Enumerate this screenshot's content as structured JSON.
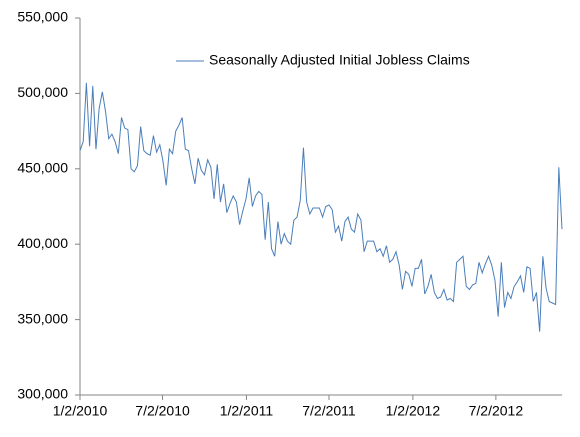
{
  "chart_data": {
    "type": "line",
    "x": [
      "1/2/2010",
      "1/9/2010",
      "1/16/2010",
      "1/23/2010",
      "1/30/2010",
      "2/6/2010",
      "2/13/2010",
      "2/20/2010",
      "2/27/2010",
      "3/6/2010",
      "3/13/2010",
      "3/20/2010",
      "3/27/2010",
      "4/3/2010",
      "4/10/2010",
      "4/17/2010",
      "4/24/2010",
      "5/1/2010",
      "5/8/2010",
      "5/15/2010",
      "5/22/2010",
      "5/29/2010",
      "6/5/2010",
      "6/12/2010",
      "6/19/2010",
      "6/26/2010",
      "7/3/2010",
      "7/10/2010",
      "7/17/2010",
      "7/24/2010",
      "7/31/2010",
      "8/7/2010",
      "8/14/2010",
      "8/21/2010",
      "8/28/2010",
      "9/4/2010",
      "9/11/2010",
      "9/18/2010",
      "9/25/2010",
      "10/2/2010",
      "10/9/2010",
      "10/16/2010",
      "10/23/2010",
      "10/30/2010",
      "11/6/2010",
      "11/13/2010",
      "11/20/2010",
      "11/27/2010",
      "12/4/2010",
      "12/11/2010",
      "12/18/2010",
      "12/25/2010",
      "1/1/2011",
      "1/8/2011",
      "1/15/2011",
      "1/22/2011",
      "1/29/2011",
      "2/5/2011",
      "2/12/2011",
      "2/19/2011",
      "2/26/2011",
      "3/5/2011",
      "3/12/2011",
      "3/19/2011",
      "3/26/2011",
      "4/2/2011",
      "4/9/2011",
      "4/16/2011",
      "4/23/2011",
      "4/30/2011",
      "5/7/2011",
      "5/14/2011",
      "5/21/2011",
      "5/28/2011",
      "6/4/2011",
      "6/11/2011",
      "6/18/2011",
      "6/25/2011",
      "7/2/2011",
      "7/9/2011",
      "7/16/2011",
      "7/23/2011",
      "7/30/2011",
      "8/6/2011",
      "8/13/2011",
      "8/20/2011",
      "8/27/2011",
      "9/3/2011",
      "9/10/2011",
      "9/17/2011",
      "9/24/2011",
      "10/1/2011",
      "10/8/2011",
      "10/15/2011",
      "10/22/2011",
      "10/29/2011",
      "11/5/2011",
      "11/12/2011",
      "11/19/2011",
      "11/26/2011",
      "12/3/2011",
      "12/10/2011",
      "12/17/2011",
      "12/24/2011",
      "12/31/2011",
      "1/7/2012",
      "1/14/2012",
      "1/21/2012",
      "1/28/2012",
      "2/4/2012",
      "2/11/2012",
      "2/18/2012",
      "2/25/2012",
      "3/3/2012",
      "3/10/2012",
      "3/17/2012",
      "3/24/2012",
      "3/31/2012",
      "4/7/2012",
      "4/14/2012",
      "4/21/2012",
      "4/28/2012",
      "5/5/2012",
      "5/12/2012",
      "5/19/2012",
      "5/26/2012",
      "6/2/2012",
      "6/9/2012",
      "6/16/2012",
      "6/23/2012",
      "6/30/2012",
      "7/7/2012",
      "7/14/2012",
      "7/21/2012",
      "7/28/2012",
      "8/4/2012",
      "8/11/2012",
      "8/18/2012",
      "8/25/2012",
      "9/1/2012",
      "9/8/2012",
      "9/15/2012",
      "9/22/2012",
      "9/29/2012",
      "10/6/2012",
      "10/13/2012",
      "10/20/2012",
      "10/27/2012",
      "11/3/2012",
      "11/10/2012",
      "11/17/2012",
      "11/24/2012"
    ],
    "series": [
      {
        "name": "Seasonally Adjusted Initial Jobless Claims",
        "color": "#4a7ebb",
        "values": [
          462000,
          468000,
          507000,
          465000,
          505000,
          463000,
          490000,
          501000,
          488000,
          470000,
          473000,
          468000,
          460000,
          484000,
          477000,
          476000,
          450000,
          448000,
          452000,
          478000,
          462000,
          460000,
          459000,
          472000,
          461000,
          466000,
          455000,
          439000,
          463000,
          460000,
          475000,
          479000,
          484000,
          463000,
          462000,
          450000,
          440000,
          457000,
          449000,
          446000,
          456000,
          451000,
          430000,
          453000,
          428000,
          440000,
          421000,
          427000,
          432000,
          428000,
          413000,
          422000,
          430000,
          444000,
          425000,
          432000,
          435000,
          433000,
          403000,
          428000,
          397000,
          392000,
          415000,
          400000,
          407000,
          402000,
          400000,
          416000,
          418000,
          429000,
          464000,
          428000,
          420000,
          424000,
          424000,
          424000,
          418000,
          425000,
          426000,
          423000,
          408000,
          412000,
          402000,
          415000,
          418000,
          410000,
          408000,
          420000,
          416000,
          395000,
          402000,
          402000,
          402000,
          395000,
          397000,
          392000,
          399000,
          388000,
          390000,
          395000,
          386000,
          370000,
          382000,
          380000,
          372000,
          384000,
          384000,
          390000,
          367000,
          372000,
          380000,
          368000,
          364000,
          365000,
          370000,
          363000,
          364000,
          362000,
          388000,
          390000,
          392000,
          372000,
          370000,
          373000,
          374000,
          388000,
          381000,
          387000,
          392000,
          386000,
          376000,
          352000,
          388000,
          358000,
          368000,
          364000,
          372000,
          375000,
          379000,
          368000,
          385000,
          384000,
          362000,
          368000,
          342000,
          392000,
          371000,
          362000,
          361000,
          360000,
          451000,
          410000
        ]
      }
    ],
    "xlim": [
      "1/2/2010",
      "11/24/2012"
    ],
    "xticks": [
      "1/2/2010",
      "7/2/2010",
      "1/2/2011",
      "7/2/2011",
      "1/2/2012",
      "7/2/2012"
    ],
    "ylim": [
      300000,
      550000
    ],
    "yticks": [
      {
        "value": 300000,
        "label": "300,000"
      },
      {
        "value": 350000,
        "label": "350,000"
      },
      {
        "value": 400000,
        "label": "400,000"
      },
      {
        "value": 450000,
        "label": "450,000"
      },
      {
        "value": 500000,
        "label": "500,000"
      },
      {
        "value": 550000,
        "label": "550,000"
      }
    ],
    "grid": false,
    "legend": "top"
  }
}
